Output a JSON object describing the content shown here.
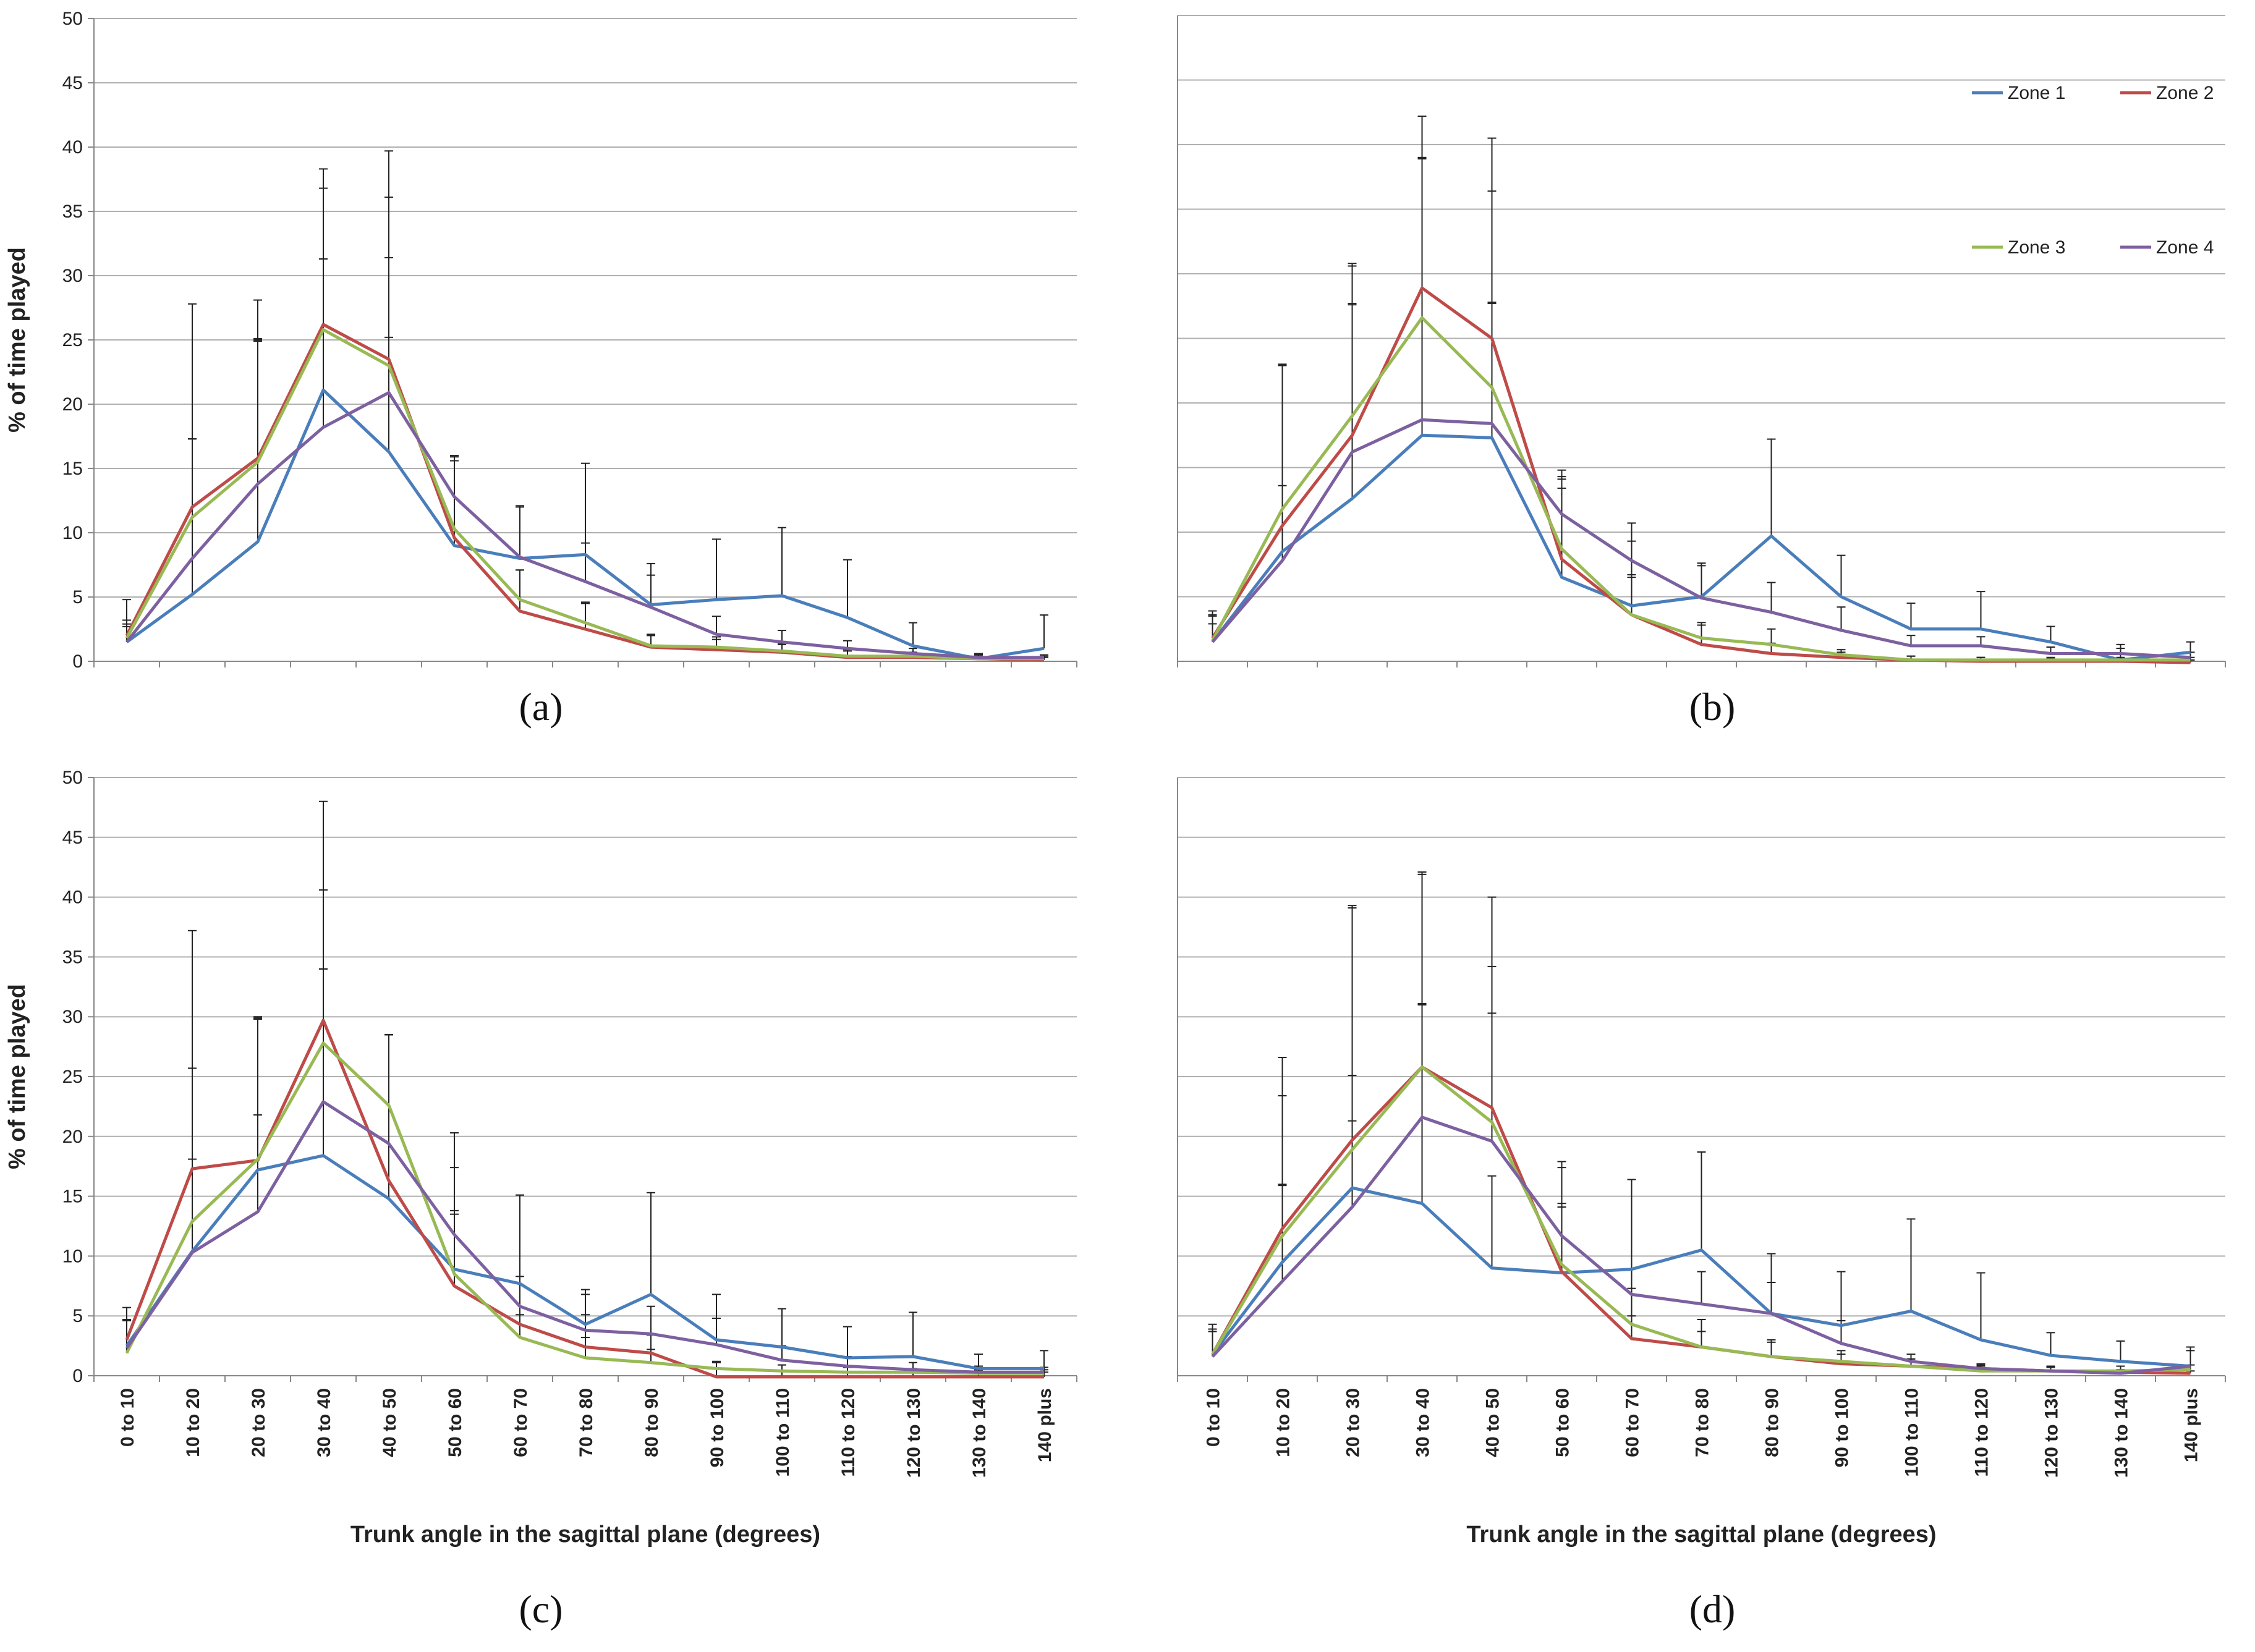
{
  "legend": [
    "Zone 1",
    "Zone 2",
    "Zone 3",
    "Zone 4"
  ],
  "colors": [
    "#4a7ebb",
    "#be4b48",
    "#98b954",
    "#7d60a0"
  ],
  "chart_data": [
    {
      "id": "a",
      "type": "line",
      "panel_label": "(a)",
      "xlabel": "",
      "ylabel": "% of time played",
      "ylim": [
        0,
        50
      ],
      "yticks": [
        0,
        5,
        10,
        15,
        20,
        25,
        30,
        35,
        40,
        45,
        50
      ],
      "show_yticks": true,
      "show_xticks": false,
      "show_legend": false,
      "categories": [
        "0 to 10",
        "10 to 20",
        "20 to 30",
        "30 to 40",
        "40 to 50",
        "50 to 60",
        "60 to 70",
        "70 to 80",
        "80 to 90",
        "90 to 100",
        "100 to 110",
        "110 to 120",
        "120 to 130",
        "130 to 140",
        "140 plus"
      ],
      "series": [
        {
          "name": "Zone 1",
          "values": [
            1.5,
            5.2,
            9.3,
            21.1,
            16.3,
            9.0,
            8.0,
            8.3,
            4.4,
            4.8,
            5.1,
            3.4,
            1.2,
            0.2,
            1.0
          ],
          "err": [
            1.4,
            12.1,
            15.6,
            10.2,
            8.9,
            6.9,
            4.0,
            7.1,
            3.2,
            4.7,
            5.3,
            4.5,
            1.8,
            0.4,
            2.6
          ]
        },
        {
          "name": "Zone 2",
          "values": [
            2.0,
            12.0,
            15.8,
            26.2,
            23.5,
            9.6,
            3.9,
            2.5,
            1.1,
            0.9,
            0.7,
            0.3,
            0.3,
            0.2,
            0.1
          ],
          "err": [
            2.8,
            15.8,
            12.3,
            12.1,
            16.2,
            6.4,
            3.2,
            2.0,
            1.0,
            1.0,
            0.7,
            0.6,
            0.4,
            0.3,
            0.2
          ]
        },
        {
          "name": "Zone 3",
          "values": [
            1.8,
            11.2,
            15.5,
            25.8,
            23.0,
            10.3,
            4.8,
            3.0,
            1.2,
            1.1,
            0.8,
            0.4,
            0.4,
            0.2,
            0.2
          ],
          "err": [
            1.4,
            6.1,
            9.5,
            11.0,
            8.4,
            5.3,
            2.3,
            1.6,
            0.8,
            0.6,
            0.5,
            0.4,
            0.3,
            0.2,
            0.2
          ]
        },
        {
          "name": "Zone 4",
          "values": [
            1.5,
            8.0,
            13.8,
            18.2,
            20.9,
            12.8,
            8.1,
            6.2,
            4.2,
            2.1,
            1.5,
            1.0,
            0.6,
            0.3,
            0.3
          ],
          "err": [
            1.2,
            9.3,
            11.3,
            13.1,
            15.2,
            3.2,
            4.0,
            3.0,
            2.5,
            1.4,
            0.9,
            0.6,
            0.4,
            0.2,
            0.2
          ]
        }
      ]
    },
    {
      "id": "b",
      "type": "line",
      "panel_label": "(b)",
      "xlabel": "",
      "ylabel": "",
      "ylim": [
        0,
        50
      ],
      "yticks": [
        0,
        5,
        10,
        15,
        20,
        25,
        30,
        35,
        40,
        45,
        50
      ],
      "show_yticks": false,
      "show_xticks": false,
      "show_legend": true,
      "categories": [
        "0 to 10",
        "10 to 20",
        "20 to 30",
        "30 to 40",
        "40 to 50",
        "50 to 60",
        "60 to 70",
        "70 to 80",
        "80 to 90",
        "90 to 100",
        "100 to 110",
        "110 to 120",
        "120 to 130",
        "130 to 140",
        "140 plus"
      ],
      "series": [
        {
          "name": "Zone 1",
          "values": [
            1.5,
            8.5,
            12.6,
            17.5,
            17.3,
            6.5,
            4.3,
            5.0,
            9.7,
            5.0,
            2.5,
            2.5,
            1.5,
            0.1,
            0.7
          ],
          "err": [
            2.0,
            14.4,
            15.1,
            21.4,
            19.1,
            7.6,
            5.0,
            2.6,
            7.5,
            3.2,
            2.0,
            2.9,
            1.2,
            1.2,
            0.8
          ]
        },
        {
          "name": "Zone 2",
          "values": [
            1.8,
            10.5,
            17.5,
            28.9,
            25.0,
            7.9,
            3.6,
            1.3,
            0.6,
            0.3,
            0.1,
            0.0,
            0.0,
            0.0,
            -0.1
          ],
          "err": [
            1.8,
            12.4,
            13.3,
            13.3,
            15.5,
            5.5,
            3.1,
            1.5,
            0.8,
            0.4,
            0.3,
            0.3,
            0.2,
            0.2,
            0.2
          ]
        },
        {
          "name": "Zone 3",
          "values": [
            1.6,
            11.8,
            19.0,
            26.6,
            21.2,
            8.7,
            3.6,
            1.8,
            1.3,
            0.5,
            0.1,
            0.1,
            0.1,
            0.1,
            0.1
          ],
          "err": [
            1.3,
            11.2,
            11.6,
            12.4,
            6.5,
            5.6,
            2.9,
            1.2,
            1.2,
            0.4,
            0.3,
            0.2,
            0.2,
            0.2,
            0.2
          ]
        },
        {
          "name": "Zone 4",
          "values": [
            1.5,
            7.8,
            16.2,
            18.7,
            18.4,
            11.4,
            7.8,
            4.9,
            3.8,
            2.4,
            1.2,
            1.2,
            0.6,
            0.6,
            0.3
          ],
          "err": [
            2.4,
            5.8,
            11.4,
            20.3,
            9.4,
            3.4,
            2.9,
            2.5,
            2.3,
            1.8,
            0.8,
            0.7,
            0.5,
            0.4,
            0.4
          ]
        }
      ]
    },
    {
      "id": "c",
      "type": "line",
      "panel_label": "(c)",
      "xlabel": "Trunk angle in the sagittal plane (degrees)",
      "ylabel": "% of time played",
      "ylim": [
        0,
        50
      ],
      "yticks": [
        0,
        5,
        10,
        15,
        20,
        25,
        30,
        35,
        40,
        45,
        50
      ],
      "show_yticks": true,
      "show_xticks": true,
      "show_legend": false,
      "categories": [
        "0 to 10",
        "10 to 20",
        "20 to 30",
        "30 to 40",
        "40 to 50",
        "50 to 60",
        "60 to 70",
        "70 to 80",
        "80 to 90",
        "90 to 100",
        "100 to 110",
        "110 to 120",
        "120 to 130",
        "130 to 140",
        "140 plus"
      ],
      "series": [
        {
          "name": "Zone 1",
          "values": [
            2.5,
            10.4,
            17.2,
            18.4,
            14.8,
            8.9,
            7.7,
            4.3,
            6.8,
            3.0,
            2.4,
            1.5,
            1.6,
            0.6,
            0.6
          ],
          "err": [
            2.2,
            7.7,
            12.6,
            15.6,
            13.7,
            11.4,
            7.4,
            2.9,
            8.5,
            3.8,
            3.2,
            2.6,
            3.7,
            1.2,
            1.5
          ]
        },
        {
          "name": "Zone 2",
          "values": [
            3.0,
            17.3,
            18.0,
            29.7,
            16.3,
            7.5,
            4.3,
            2.4,
            1.9,
            -0.1,
            -0.1,
            -0.1,
            -0.1,
            -0.1,
            -0.1
          ],
          "err": [
            2.7,
            19.9,
            12.0,
            10.9,
            12.2,
            6.0,
            4.0,
            2.7,
            1.5,
            1.2,
            1.0,
            0.8,
            0.6,
            0.5,
            0.4
          ]
        },
        {
          "name": "Zone 3",
          "values": [
            1.9,
            12.9,
            18.1,
            27.8,
            22.6,
            8.5,
            3.2,
            1.5,
            1.1,
            0.6,
            0.4,
            0.3,
            0.3,
            0.2,
            0.2
          ],
          "err": [
            2.7,
            12.8,
            11.8,
            20.2,
            5.9,
            5.3,
            1.9,
            1.7,
            1.1,
            0.6,
            0.5,
            0.4,
            0.3,
            0.3,
            0.3
          ]
        },
        {
          "name": "Zone 4",
          "values": [
            2.3,
            10.3,
            13.7,
            22.9,
            19.4,
            11.8,
            5.8,
            3.8,
            3.5,
            2.6,
            1.3,
            0.8,
            0.5,
            0.3,
            0.3
          ],
          "err": [
            2.3,
            15.4,
            8.1,
            11.1,
            9.1,
            5.6,
            9.3,
            3.0,
            2.3,
            2.2,
            1.2,
            0.8,
            0.6,
            0.5,
            0.4
          ]
        }
      ]
    },
    {
      "id": "d",
      "type": "line",
      "panel_label": "(d)",
      "xlabel": "Trunk angle in the sagittal plane (degrees)",
      "ylabel": "",
      "ylim": [
        0,
        50
      ],
      "yticks": [
        0,
        5,
        10,
        15,
        20,
        25,
        30,
        35,
        40,
        45,
        50
      ],
      "show_yticks": false,
      "show_xticks": true,
      "show_legend": false,
      "categories": [
        "0 to 10",
        "10 to 20",
        "20 to 30",
        "30 to 40",
        "40 to 50",
        "50 to 60",
        "60 to 70",
        "70 to 80",
        "80 to 90",
        "90 to 100",
        "100 to 110",
        "110 to 120",
        "120 to 130",
        "130 to 140",
        "140 plus"
      ],
      "series": [
        {
          "name": "Zone 1",
          "values": [
            1.8,
            9.5,
            15.7,
            14.4,
            9.0,
            8.6,
            8.9,
            10.5,
            5.2,
            4.2,
            5.4,
            3.0,
            1.7,
            1.2,
            0.8
          ],
          "err": [
            2.5,
            6.5,
            5.6,
            16.6,
            7.7,
            5.8,
            7.5,
            8.2,
            5.0,
            4.5,
            7.7,
            5.6,
            1.9,
            1.7,
            1.6
          ]
        },
        {
          "name": "Zone 2",
          "values": [
            1.8,
            12.3,
            19.7,
            25.8,
            22.4,
            8.7,
            3.1,
            2.4,
            1.6,
            1.0,
            0.8,
            0.6,
            0.4,
            0.3,
            0.2
          ],
          "err": [
            1.9,
            14.3,
            19.6,
            16.3,
            17.6,
            5.4,
            1.9,
            1.3,
            1.2,
            0.8,
            0.6,
            0.3,
            0.3,
            0.2,
            0.2
          ]
        },
        {
          "name": "Zone 3",
          "values": [
            1.8,
            11.7,
            18.9,
            25.8,
            21.2,
            9.3,
            4.3,
            2.4,
            1.6,
            1.2,
            0.8,
            0.4,
            0.4,
            0.4,
            0.5
          ],
          "err": [
            1.9,
            11.7,
            20.2,
            16.1,
            13.0,
            8.1,
            3.0,
            2.3,
            1.4,
            0.9,
            0.6,
            0.4,
            0.4,
            0.4,
            0.4
          ]
        },
        {
          "name": "Zone 4",
          "values": [
            1.6,
            7.9,
            14.1,
            21.6,
            19.6,
            11.7,
            6.8,
            6.0,
            5.2,
            2.7,
            1.2,
            0.6,
            0.4,
            0.2,
            0.8
          ],
          "err": [
            2.3,
            8.0,
            11.0,
            9.5,
            10.7,
            6.2,
            9.6,
            2.7,
            2.6,
            1.9,
            0.6,
            0.4,
            0.3,
            0.3,
            1.3
          ]
        }
      ]
    }
  ]
}
